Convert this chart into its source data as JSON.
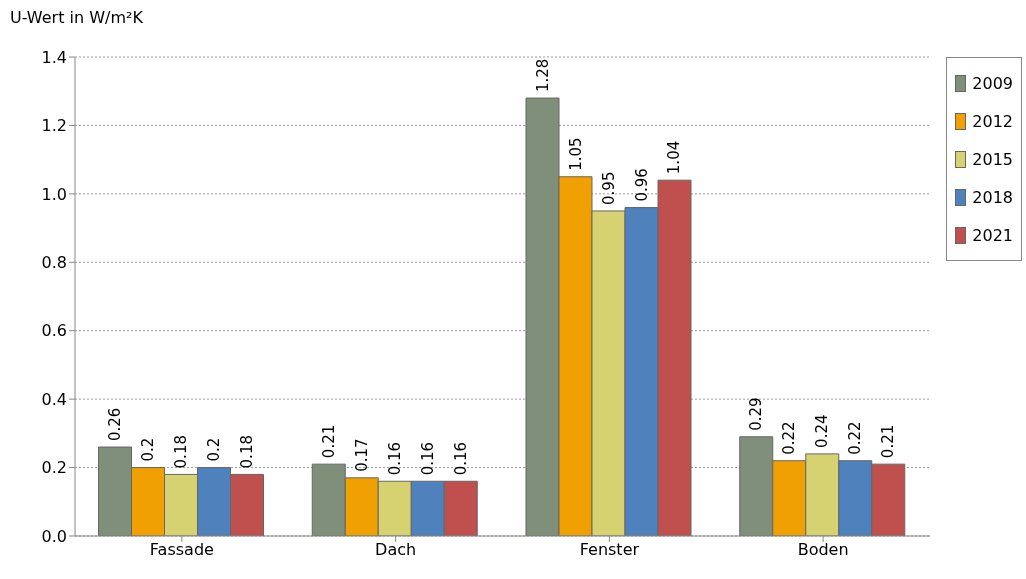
{
  "chart_data": {
    "type": "bar",
    "ylabel": "U-Wert in W/m²K",
    "categories": [
      "Fassade",
      "Dach",
      "Fenster",
      "Boden"
    ],
    "series": [
      {
        "name": "2009",
        "color": "#7f8f7a",
        "values": [
          0.26,
          0.21,
          1.28,
          0.29
        ]
      },
      {
        "name": "2012",
        "color": "#f0a000",
        "values": [
          0.2,
          0.17,
          1.05,
          0.22
        ]
      },
      {
        "name": "2015",
        "color": "#d6d272",
        "values": [
          0.18,
          0.16,
          0.95,
          0.24
        ]
      },
      {
        "name": "2018",
        "color": "#4f81bd",
        "values": [
          0.2,
          0.16,
          0.96,
          0.22
        ]
      },
      {
        "name": "2021",
        "color": "#c0504d",
        "values": [
          0.18,
          0.16,
          1.04,
          0.21
        ]
      }
    ],
    "ylim": [
      0,
      1.4
    ],
    "yticks": [
      {
        "value": 0,
        "label": "0.0"
      },
      {
        "value": 0.2,
        "label": "0.2"
      },
      {
        "value": 0.4,
        "label": "0.4"
      },
      {
        "value": 0.6,
        "label": "0.6"
      },
      {
        "value": 0.8,
        "label": "0.8"
      },
      {
        "value": 1,
        "label": "1.0"
      },
      {
        "value": 1.2,
        "label": "1.2"
      },
      {
        "value": 1.4,
        "label": "1.4"
      }
    ],
    "grid": "y",
    "legend": "right",
    "data_labels": true
  }
}
